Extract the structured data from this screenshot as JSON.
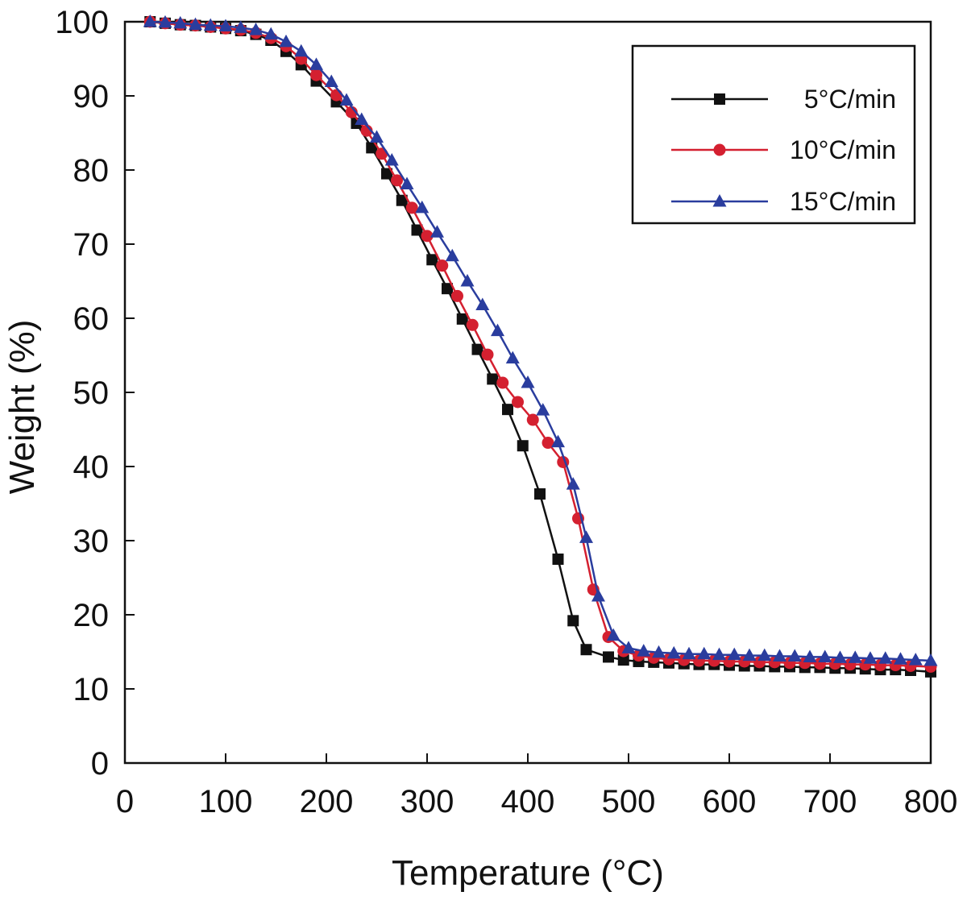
{
  "chart_data": {
    "type": "line",
    "title": "",
    "xlabel": "Temperature (°C)",
    "ylabel": "Weight (%)",
    "xlim": [
      0,
      800
    ],
    "ylim": [
      0,
      100
    ],
    "xticks": [
      0,
      100,
      200,
      300,
      400,
      500,
      600,
      700,
      800
    ],
    "yticks": [
      0,
      10,
      20,
      30,
      40,
      50,
      60,
      70,
      80,
      90,
      100
    ],
    "grid": false,
    "legend_position": "top-right",
    "series": [
      {
        "name": "5°C/min",
        "color": "#111111",
        "marker": "square",
        "x": [
          25,
          40,
          55,
          70,
          85,
          100,
          115,
          130,
          145,
          160,
          175,
          190,
          210,
          230,
          245,
          260,
          275,
          290,
          305,
          320,
          335,
          350,
          365,
          380,
          395,
          412,
          430,
          445,
          458,
          480,
          495,
          510,
          525,
          540,
          555,
          570,
          585,
          600,
          615,
          630,
          645,
          660,
          675,
          690,
          705,
          720,
          735,
          750,
          765,
          780,
          800
        ],
        "y": [
          100,
          99.8,
          99.6,
          99.5,
          99.3,
          99.1,
          98.8,
          98.3,
          97.5,
          96,
          94.2,
          92,
          89.2,
          86.3,
          83,
          79.5,
          75.9,
          71.9,
          67.9,
          64,
          59.9,
          55.8,
          51.8,
          47.7,
          42.8,
          36.3,
          27.5,
          19.2,
          15.3,
          14.3,
          13.9,
          13.7,
          13.6,
          13.5,
          13.4,
          13.3,
          13.3,
          13.2,
          13.1,
          13.1,
          13,
          13,
          12.9,
          12.9,
          12.8,
          12.8,
          12.7,
          12.6,
          12.6,
          12.5,
          12.3
        ]
      },
      {
        "name": "10°C/min",
        "color": "#d42030",
        "marker": "circle",
        "x": [
          25,
          40,
          55,
          70,
          85,
          100,
          115,
          130,
          145,
          160,
          175,
          190,
          210,
          225,
          240,
          255,
          270,
          285,
          300,
          315,
          330,
          345,
          360,
          375,
          390,
          405,
          420,
          435,
          450,
          465,
          480,
          495,
          510,
          525,
          540,
          555,
          570,
          585,
          600,
          615,
          630,
          645,
          660,
          675,
          690,
          705,
          720,
          735,
          750,
          765,
          780,
          800
        ],
        "y": [
          100,
          99.8,
          99.6,
          99.5,
          99.3,
          99.1,
          98.9,
          98.5,
          97.8,
          96.7,
          95,
          92.8,
          90.1,
          87.8,
          85.3,
          82.2,
          78.6,
          74.9,
          71.1,
          67.1,
          63,
          59.1,
          55.1,
          51.3,
          48.7,
          46.3,
          43.2,
          40.6,
          33,
          23.4,
          17,
          15.1,
          14.5,
          14.2,
          14,
          13.9,
          13.8,
          13.8,
          13.7,
          13.7,
          13.6,
          13.6,
          13.5,
          13.5,
          13.4,
          13.4,
          13.3,
          13.3,
          13.2,
          13.2,
          13.1,
          13
        ]
      },
      {
        "name": "15°C/min",
        "color": "#2a3d9e",
        "marker": "triangle",
        "x": [
          25,
          40,
          55,
          70,
          85,
          100,
          115,
          130,
          145,
          160,
          175,
          190,
          205,
          220,
          235,
          250,
          265,
          280,
          295,
          310,
          325,
          340,
          355,
          370,
          385,
          400,
          415,
          430,
          445,
          458,
          470,
          485,
          500,
          515,
          530,
          545,
          560,
          575,
          590,
          605,
          620,
          635,
          650,
          665,
          680,
          695,
          710,
          725,
          740,
          755,
          770,
          785,
          800
        ],
        "y": [
          100,
          99.9,
          99.8,
          99.6,
          99.5,
          99.4,
          99.2,
          98.9,
          98.3,
          97.3,
          96,
          94.2,
          91.9,
          89.4,
          86.8,
          84.4,
          81.3,
          78.1,
          74.9,
          71.6,
          68.4,
          65,
          61.8,
          58.3,
          54.6,
          51.3,
          47.6,
          43.3,
          37.6,
          30.4,
          22.5,
          17.2,
          15.5,
          15.1,
          14.9,
          14.8,
          14.7,
          14.7,
          14.6,
          14.6,
          14.5,
          14.5,
          14.4,
          14.4,
          14.3,
          14.3,
          14.2,
          14.2,
          14.1,
          14.1,
          14,
          13.9,
          13.8
        ]
      }
    ]
  }
}
